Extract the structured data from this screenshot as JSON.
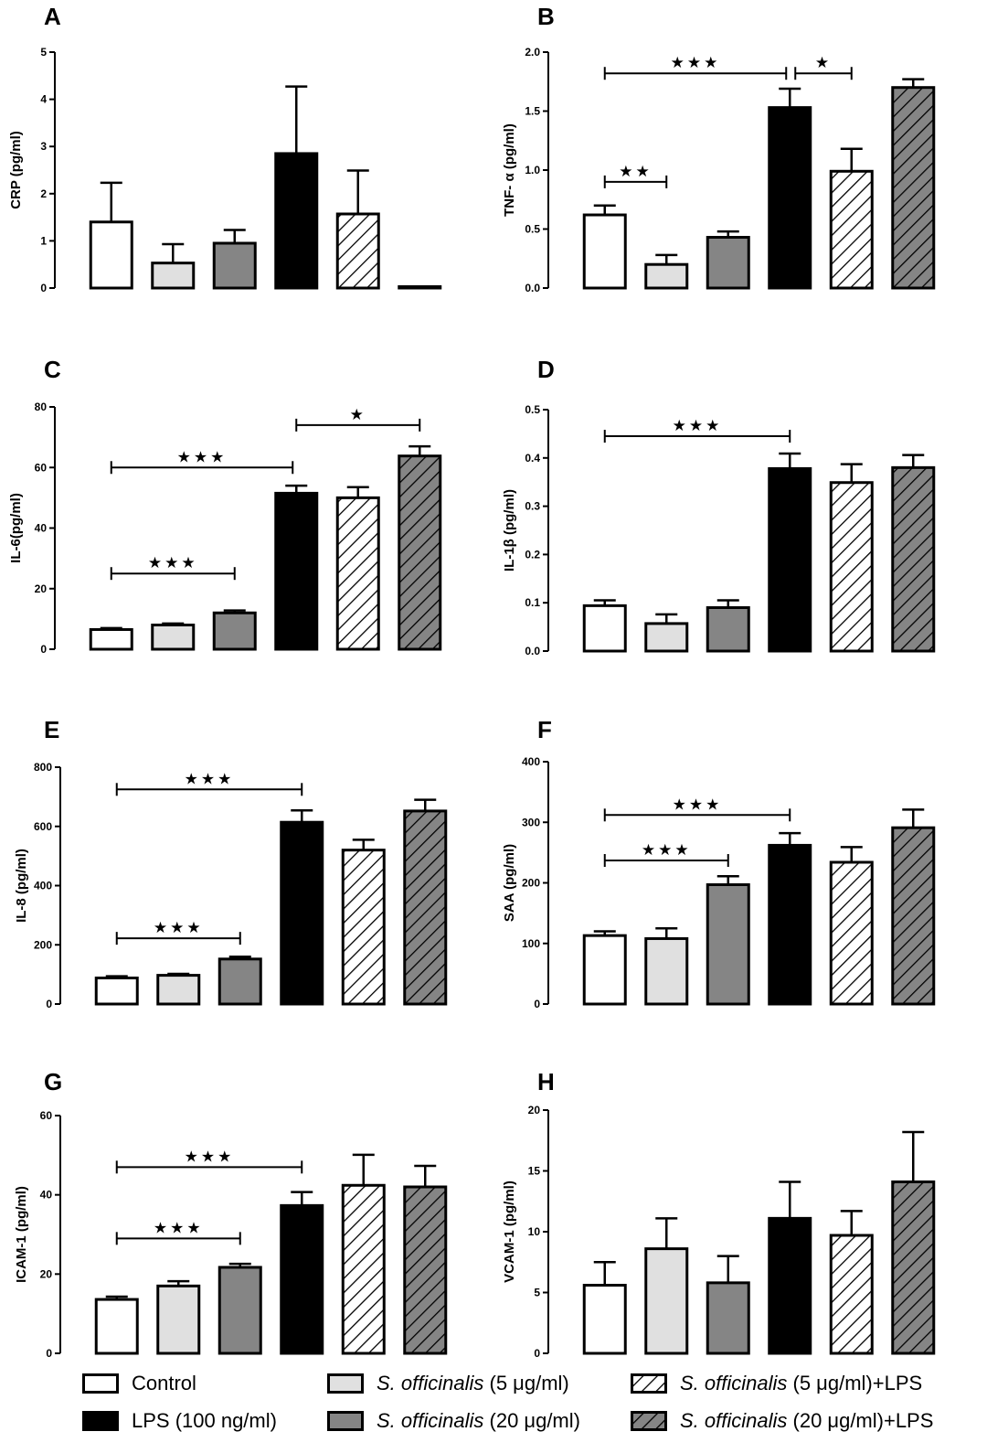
{
  "chart_data": [
    {
      "panel": "A",
      "type": "bar",
      "ylabel": "CRP (pg/ml)",
      "ylim": [
        0,
        5
      ],
      "yticks": [
        0,
        1,
        2,
        3,
        4,
        5
      ],
      "ytick_labels": [
        "0",
        "1",
        "2",
        "3",
        "4",
        "5"
      ],
      "values": [
        1.4,
        0.53,
        0.95,
        2.85,
        1.57,
        0.03
      ],
      "errors": [
        0.83,
        0.4,
        0.28,
        1.42,
        0.92,
        0.0
      ],
      "annotations": []
    },
    {
      "panel": "B",
      "type": "bar",
      "ylabel": "TNF- α (pg/ml)",
      "ylim": [
        0,
        2.0
      ],
      "yticks": [
        0,
        0.5,
        1.0,
        1.5,
        2.0
      ],
      "ytick_labels": [
        "0.0",
        "0.5",
        "1.0",
        "1.5",
        "2.0"
      ],
      "values": [
        0.62,
        0.2,
        0.43,
        1.53,
        0.99,
        1.7
      ],
      "errors": [
        0.08,
        0.08,
        0.05,
        0.16,
        0.19,
        0.07
      ],
      "annotations": [
        {
          "from": 0,
          "to": 3,
          "y": 1.82,
          "label": "***"
        },
        {
          "from": 3,
          "to": 4,
          "y": 1.82,
          "label": "*"
        },
        {
          "from": 0,
          "to": 1,
          "y": 0.9,
          "label": "**"
        }
      ]
    },
    {
      "panel": "C",
      "type": "bar",
      "ylabel": "IL-6(pg/ml)",
      "ylim": [
        0,
        80
      ],
      "yticks": [
        0,
        20,
        40,
        60,
        80
      ],
      "ytick_labels": [
        "0",
        "20",
        "40",
        "60",
        "80"
      ],
      "values": [
        6.5,
        8,
        12,
        51.5,
        50,
        63.8
      ],
      "errors": [
        0.5,
        0.5,
        0.8,
        2.5,
        3.5,
        3.2
      ],
      "annotations": [
        {
          "from": 3,
          "to": 5,
          "y": 74,
          "label": "*"
        },
        {
          "from": 0,
          "to": 3,
          "y": 60,
          "label": "***"
        },
        {
          "from": 0,
          "to": 2,
          "y": 25,
          "label": "***"
        }
      ]
    },
    {
      "panel": "D",
      "type": "bar",
      "ylabel": "IL-1β (pg/ml)",
      "ylim": [
        0,
        0.5
      ],
      "yticks": [
        0,
        0.1,
        0.2,
        0.3,
        0.4,
        0.5
      ],
      "ytick_labels": [
        "0.0",
        "0.1",
        "0.2",
        "0.3",
        "0.4",
        "0.5"
      ],
      "values": [
        0.094,
        0.057,
        0.09,
        0.378,
        0.349,
        0.38
      ],
      "errors": [
        0.011,
        0.019,
        0.015,
        0.031,
        0.038,
        0.026
      ],
      "annotations": [
        {
          "from": 0,
          "to": 3,
          "y": 0.445,
          "label": "***"
        }
      ]
    },
    {
      "panel": "E",
      "type": "bar",
      "ylabel": "IL-8 (pg/ml)",
      "ylim": [
        0,
        800
      ],
      "yticks": [
        0,
        200,
        400,
        600,
        800
      ],
      "ytick_labels": [
        "0",
        "200",
        "400",
        "600",
        "800"
      ],
      "values": [
        88,
        97,
        152,
        614,
        520,
        652
      ],
      "errors": [
        6,
        5,
        8,
        40,
        35,
        38
      ],
      "annotations": [
        {
          "from": 0,
          "to": 3,
          "y": 725,
          "label": "***"
        },
        {
          "from": 0,
          "to": 2,
          "y": 222,
          "label": "***"
        }
      ]
    },
    {
      "panel": "F",
      "type": "bar",
      "ylabel": "SAA (pg/ml)",
      "ylim": [
        0,
        400
      ],
      "yticks": [
        0,
        100,
        200,
        300,
        400
      ],
      "ytick_labels": [
        "0",
        "100",
        "200",
        "300",
        "400"
      ],
      "values": [
        113,
        108,
        197,
        262,
        234,
        291
      ],
      "errors": [
        7,
        17,
        14,
        20,
        25,
        30
      ],
      "annotations": [
        {
          "from": 0,
          "to": 3,
          "y": 312,
          "label": "***"
        },
        {
          "from": 0,
          "to": 2,
          "y": 237,
          "label": "***"
        }
      ]
    },
    {
      "panel": "G",
      "type": "bar",
      "ylabel": "ICAM-1 (pg/ml)",
      "ylim": [
        0,
        60
      ],
      "yticks": [
        0,
        20,
        40,
        60
      ],
      "ytick_labels": [
        "0",
        "20",
        "40",
        "60"
      ],
      "values": [
        13.6,
        17,
        21.7,
        37.3,
        42.4,
        42
      ],
      "errors": [
        0.7,
        1.2,
        0.9,
        3.4,
        7.7,
        5.3
      ],
      "annotations": [
        {
          "from": 0,
          "to": 3,
          "y": 47,
          "label": "***"
        },
        {
          "from": 0,
          "to": 2,
          "y": 29,
          "label": "***"
        }
      ]
    },
    {
      "panel": "H",
      "type": "bar",
      "ylabel": "VCAM-1 (pg/ml)",
      "ylim": [
        0,
        20
      ],
      "yticks": [
        0,
        5,
        10,
        15,
        20
      ],
      "ytick_labels": [
        "0",
        "5",
        "10",
        "15",
        "20"
      ],
      "values": [
        5.6,
        8.6,
        5.8,
        11.1,
        9.7,
        14.1
      ],
      "errors": [
        1.9,
        2.5,
        2.2,
        3.0,
        2.0,
        4.1
      ],
      "annotations": []
    }
  ],
  "groups": [
    {
      "label_pre": "Control",
      "label_italic": "",
      "label_post": "",
      "fill": "#ffffff",
      "hatch": false
    },
    {
      "label_pre": "",
      "label_italic": "S. officinalis",
      "label_post": " (5 μg/ml)",
      "fill": "#e0e0e0",
      "hatch": false
    },
    {
      "label_pre": "",
      "label_italic": "S. officinalis",
      "label_post": " (20 μg/ml)",
      "fill": "#858585",
      "hatch": false
    },
    {
      "label_pre": "LPS (100 ng/ml)",
      "label_italic": "",
      "label_post": "",
      "fill": "#000000",
      "hatch": false
    },
    {
      "label_pre": "",
      "label_italic": "S. officinalis",
      "label_post": " (5 μg/ml)+LPS",
      "fill": "#ffffff",
      "hatch": true
    },
    {
      "label_pre": "",
      "label_italic": "S. officinalis",
      "label_post": " (20 μg/ml)+LPS",
      "fill": "#858585",
      "hatch": true
    }
  ],
  "colors": {
    "axis": "#000000",
    "bar_stroke": "#000000",
    "hatch_stroke": "#000000"
  }
}
